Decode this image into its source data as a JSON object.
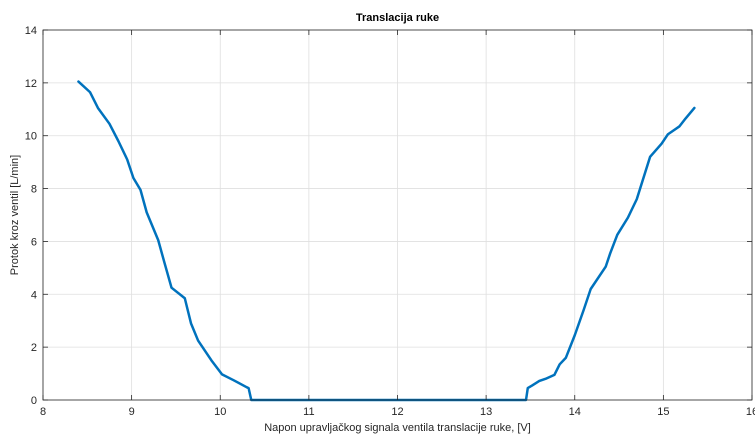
{
  "chart_data": {
    "type": "line",
    "title": "Translacija ruke",
    "xlabel": "Napon upravljačkog signala ventila translacije ruke, [V]",
    "ylabel": "Protok kroz ventil [L/min]",
    "xlim": [
      8,
      16
    ],
    "ylim": [
      0,
      14
    ],
    "xticks": [
      8,
      9,
      10,
      11,
      12,
      13,
      14,
      15,
      16
    ],
    "yticks": [
      0,
      2,
      4,
      6,
      8,
      10,
      12,
      14
    ],
    "grid": true,
    "box": true,
    "line_color": "#0072BD",
    "series": [
      {
        "x": [
          8.4,
          8.53,
          8.62,
          8.75,
          8.85,
          8.95,
          9.02,
          9.1,
          9.17,
          9.3,
          9.37,
          9.45,
          9.6,
          9.67,
          9.75,
          9.9,
          10.02,
          10.15,
          10.3,
          10.32,
          10.35,
          11.0,
          12.0,
          13.0,
          13.45,
          13.47,
          13.52,
          13.6,
          13.67,
          13.77,
          13.83,
          13.9,
          14.0,
          14.1,
          14.18,
          14.35,
          14.4,
          14.48,
          14.6,
          14.7,
          14.85,
          14.98,
          15.05,
          15.18,
          15.25,
          15.35
        ],
        "y": [
          12.05,
          11.65,
          11.05,
          10.45,
          9.8,
          9.1,
          8.4,
          7.95,
          7.1,
          6.05,
          5.2,
          4.25,
          3.85,
          2.9,
          2.25,
          1.5,
          0.97,
          0.75,
          0.48,
          0.45,
          0.0,
          0.0,
          0.0,
          0.0,
          0.0,
          0.45,
          0.55,
          0.72,
          0.8,
          0.95,
          1.35,
          1.6,
          2.45,
          3.4,
          4.2,
          5.05,
          5.55,
          6.25,
          6.9,
          7.6,
          9.2,
          9.7,
          10.05,
          10.35,
          10.65,
          11.05
        ]
      }
    ]
  }
}
